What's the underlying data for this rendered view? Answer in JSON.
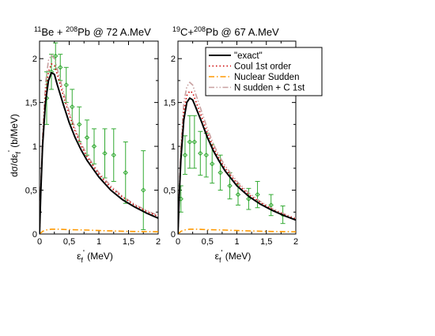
{
  "chart_data": [
    {
      "type": "line",
      "title": {
        "projectile_mass": "11",
        "projectile": "Be + ",
        "target_mass": "208",
        "target": "Pb @ 72 A.MeV"
      },
      "xlabel": {
        "symbol": "ε",
        "sub": "f",
        "prime": "'",
        "unit": "(MeV)"
      },
      "ylabel": {
        "text": "dσ/dε",
        "sub": "f",
        "prime": "'",
        "unit": "(b/MeV)"
      },
      "xlim": [
        0,
        2
      ],
      "ylim": [
        0,
        2.2
      ],
      "xticks": [
        "0",
        "0,5",
        "1",
        "1,5",
        "2"
      ],
      "yticks": [
        "0",
        "0,5",
        "1",
        "1,5",
        "2"
      ],
      "series": [
        {
          "name": "\"exact\"",
          "color": "#000000",
          "style": "solid",
          "x": [
            0,
            0.02,
            0.05,
            0.1,
            0.15,
            0.2,
            0.25,
            0.3,
            0.4,
            0.5,
            0.6,
            0.7,
            0.8,
            1.0,
            1.2,
            1.4,
            1.6,
            1.8,
            2.0
          ],
          "y": [
            0,
            0.45,
            1.0,
            1.5,
            1.75,
            1.84,
            1.82,
            1.7,
            1.48,
            1.27,
            1.1,
            0.96,
            0.84,
            0.65,
            0.5,
            0.39,
            0.31,
            0.24,
            0.18
          ]
        },
        {
          "name": "Coul 1st order",
          "color": "#cc0000",
          "style": "dotted",
          "x": [
            0,
            0.02,
            0.05,
            0.1,
            0.15,
            0.2,
            0.25,
            0.3,
            0.4,
            0.5,
            0.6,
            0.7,
            0.8,
            1.0,
            1.2,
            1.4,
            1.6,
            1.8,
            2.0
          ],
          "y": [
            0,
            0.48,
            1.05,
            1.6,
            1.85,
            1.94,
            1.92,
            1.82,
            1.58,
            1.36,
            1.17,
            1.01,
            0.88,
            0.68,
            0.53,
            0.42,
            0.33,
            0.26,
            0.2
          ]
        },
        {
          "name": "Nuclear Sudden",
          "color": "#ff9900",
          "style": "dashdot",
          "x": [
            0,
            0.05,
            0.1,
            0.2,
            0.3,
            0.5,
            0.8,
            1.0,
            1.5,
            2.0
          ],
          "y": [
            0,
            0.03,
            0.045,
            0.055,
            0.055,
            0.05,
            0.045,
            0.04,
            0.03,
            0.025
          ]
        },
        {
          "name": "N sudden + C 1st",
          "color": "#c8a0a0",
          "style": "dashdotdot",
          "x": [
            0,
            0.02,
            0.05,
            0.1,
            0.15,
            0.2,
            0.25,
            0.3,
            0.4,
            0.5,
            0.6,
            0.7,
            0.8,
            1.0,
            1.2,
            1.4,
            1.6,
            1.8,
            2.0
          ],
          "y": [
            0,
            0.52,
            1.12,
            1.72,
            1.98,
            2.04,
            2.0,
            1.88,
            1.63,
            1.4,
            1.2,
            1.04,
            0.9,
            0.7,
            0.55,
            0.43,
            0.34,
            0.27,
            0.21
          ]
        }
      ],
      "data_points": {
        "color": "#33aa33",
        "x": [
          0.12,
          0.2,
          0.27,
          0.35,
          0.45,
          0.55,
          0.67,
          0.8,
          0.92,
          1.1,
          1.25,
          1.45,
          1.75
        ],
        "y": [
          1.55,
          1.85,
          2.03,
          1.9,
          1.7,
          1.45,
          1.25,
          1.1,
          1.0,
          0.92,
          0.9,
          0.7,
          0.5
        ],
        "err": [
          0.3,
          0.2,
          0.15,
          0.15,
          0.2,
          0.2,
          0.2,
          0.2,
          0.2,
          0.28,
          0.3,
          0.35,
          0.45
        ]
      }
    },
    {
      "type": "line",
      "title": {
        "projectile_mass": "19",
        "projectile": "C+",
        "target_mass": "208",
        "target": "Pb @ 67 A.MeV"
      },
      "xlabel": {
        "symbol": "ε",
        "sub": "f",
        "prime": "'",
        "unit": "(MeV)"
      },
      "xlim": [
        0,
        2
      ],
      "ylim": [
        0,
        2.2
      ],
      "xticks": [
        "0",
        "0,5",
        "1",
        "1,5",
        "2"
      ],
      "yticks": [
        "0",
        "0,5",
        "1",
        "1,5",
        "2"
      ],
      "legend_position": "top-right",
      "series": [
        {
          "name": "\"exact\"",
          "color": "#000000",
          "style": "solid",
          "x": [
            0,
            0.02,
            0.05,
            0.1,
            0.15,
            0.2,
            0.25,
            0.3,
            0.4,
            0.5,
            0.6,
            0.7,
            0.8,
            1.0,
            1.2,
            1.4,
            1.6,
            1.8,
            2.0
          ],
          "y": [
            0,
            0.4,
            0.85,
            1.3,
            1.5,
            1.55,
            1.53,
            1.45,
            1.28,
            1.1,
            0.95,
            0.83,
            0.72,
            0.55,
            0.43,
            0.34,
            0.27,
            0.21,
            0.16
          ]
        },
        {
          "name": "Coul 1st order",
          "color": "#cc0000",
          "style": "dotted",
          "x": [
            0,
            0.02,
            0.05,
            0.1,
            0.15,
            0.2,
            0.25,
            0.3,
            0.4,
            0.5,
            0.6,
            0.7,
            0.8,
            1.0,
            1.2,
            1.4,
            1.6,
            1.8,
            2.0
          ],
          "y": [
            0,
            0.43,
            0.92,
            1.4,
            1.58,
            1.63,
            1.61,
            1.52,
            1.34,
            1.15,
            0.99,
            0.86,
            0.75,
            0.58,
            0.45,
            0.36,
            0.28,
            0.22,
            0.17
          ]
        },
        {
          "name": "Nuclear Sudden",
          "color": "#ff9900",
          "style": "dashdot",
          "x": [
            0,
            0.05,
            0.1,
            0.2,
            0.3,
            0.5,
            0.8,
            1.0,
            1.5,
            2.0
          ],
          "y": [
            0,
            0.03,
            0.045,
            0.055,
            0.055,
            0.05,
            0.045,
            0.04,
            0.03,
            0.025
          ]
        },
        {
          "name": "N sudden + C 1st",
          "color": "#c8a0a0",
          "style": "dashdotdot",
          "x": [
            0,
            0.02,
            0.05,
            0.1,
            0.15,
            0.2,
            0.25,
            0.3,
            0.4,
            0.5,
            0.6,
            0.7,
            0.8,
            1.0,
            1.2,
            1.4,
            1.6,
            1.8,
            2.0
          ],
          "y": [
            0,
            0.46,
            1.0,
            1.5,
            1.68,
            1.73,
            1.7,
            1.6,
            1.4,
            1.2,
            1.03,
            0.89,
            0.78,
            0.6,
            0.47,
            0.37,
            0.29,
            0.23,
            0.18
          ]
        }
      ],
      "data_points": {
        "color": "#33aa33",
        "x": [
          0.05,
          0.12,
          0.2,
          0.28,
          0.38,
          0.48,
          0.58,
          0.72,
          0.88,
          1.02,
          1.2,
          1.35,
          1.58,
          1.78
        ],
        "y": [
          0.4,
          0.9,
          1.05,
          1.05,
          0.92,
          0.9,
          0.8,
          0.7,
          0.55,
          0.45,
          0.4,
          0.45,
          0.33,
          0.22
        ],
        "err": [
          0.15,
          0.22,
          0.3,
          0.3,
          0.25,
          0.25,
          0.22,
          0.2,
          0.15,
          0.12,
          0.12,
          0.15,
          0.12,
          0.1
        ]
      }
    }
  ]
}
